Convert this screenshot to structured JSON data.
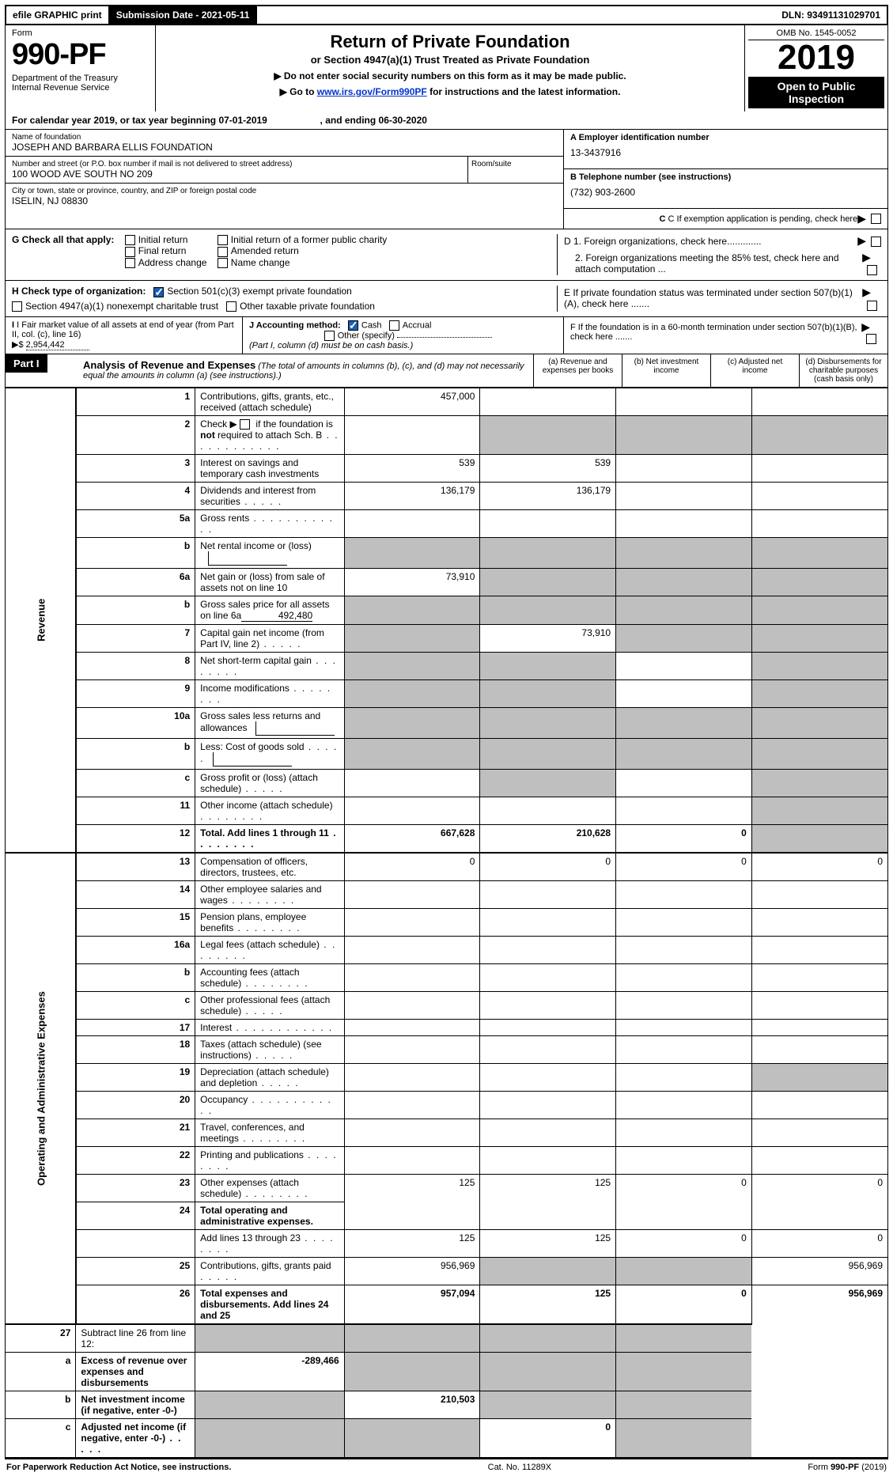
{
  "top_bar": {
    "efile_label": "efile GRAPHIC print",
    "submission_label": "Submission Date - 2021-05-11",
    "dln": "DLN: 93491131029701"
  },
  "header": {
    "form_label": "Form",
    "form_number": "990-PF",
    "dept": "Department of the Treasury\nInternal Revenue Service",
    "title": "Return of Private Foundation",
    "subtitle": "or Section 4947(a)(1) Trust Treated as Private Foundation",
    "note1": "▶ Do not enter social security numbers on this form as it may be made public.",
    "note2": "▶ Go to www.irs.gov/Form990PF for instructions and the latest information.",
    "note2_link_text": "www.irs.gov/Form990PF",
    "omb": "OMB No. 1545-0052",
    "tax_year": "2019",
    "open_public": "Open to Public Inspection"
  },
  "cal_year": {
    "prefix": "For calendar year 2019, or tax year beginning ",
    "begin_date": "07-01-2019",
    "mid": " , and ending ",
    "end_date": "06-30-2020"
  },
  "entity": {
    "name_label": "Name of foundation",
    "name": "JOSEPH AND BARBARA ELLIS FOUNDATION",
    "addr_label": "Number and street (or P.O. box number if mail is not delivered to street address)",
    "addr": "100 WOOD AVE SOUTH NO 209",
    "room_label": "Room/suite",
    "city_label": "City or town, state or province, country, and ZIP or foreign postal code",
    "city": "ISELIN, NJ  08830",
    "a_label": "A Employer identification number",
    "ein": "13-3437916",
    "b_label": "B Telephone number (see instructions)",
    "phone": "(732) 903-2600",
    "c_label": "C If exemption application is pending, check here",
    "d1_label": "D 1. Foreign organizations, check here.............",
    "d2_label": "2. Foreign organizations meeting the 85% test, check here and attach computation ...",
    "e_label": "E  If private foundation status was terminated under section 507(b)(1)(A), check here .......",
    "f_label": "F  If the foundation is in a 60-month termination under section 507(b)(1)(B), check here ......."
  },
  "g": {
    "label": "G Check all that apply:",
    "opts": [
      "Initial return",
      "Final return",
      "Address change",
      "Initial return of a former public charity",
      "Amended return",
      "Name change"
    ]
  },
  "h": {
    "label": "H Check type of organization:",
    "opt1": "Section 501(c)(3) exempt private foundation",
    "opt2": "Section 4947(a)(1) nonexempt charitable trust",
    "opt3": "Other taxable private foundation"
  },
  "i": {
    "label": "I Fair market value of all assets at end of year (from Part II, col. (c), line 16)",
    "prefix": "▶$",
    "value": "2,954,442"
  },
  "j": {
    "label": "J Accounting method:",
    "opt_cash": "Cash",
    "opt_accrual": "Accrual",
    "opt_other": "Other (specify)",
    "note": "(Part I, column (d) must be on cash basis.)"
  },
  "part1": {
    "label": "Part I",
    "title": "Analysis of Revenue and Expenses",
    "subtitle": "(The total of amounts in columns (b), (c), and (d) may not necessarily equal the amounts in column (a) (see instructions).)",
    "col_a": "(a)   Revenue and expenses per books",
    "col_b": "(b)   Net investment income",
    "col_c": "(c)   Adjusted net income",
    "col_d": "(d)   Disbursements for charitable purposes (cash basis only)"
  },
  "side_labels": {
    "revenue": "Revenue",
    "expenses": "Operating and Administrative Expenses"
  },
  "rows": [
    {
      "n": "1",
      "desc": "Contributions, gifts, grants, etc., received (attach schedule)",
      "a": "457,000",
      "b": "",
      "c": "",
      "d": ""
    },
    {
      "n": "2",
      "desc": "Check ▶ ☐ if the foundation is not required to attach Sch. B",
      "a": "",
      "b": "",
      "c": "",
      "d": "",
      "dots": true,
      "gray_bcd": true
    },
    {
      "n": "3",
      "desc": "Interest on savings and temporary cash investments",
      "a": "539",
      "b": "539",
      "c": "",
      "d": ""
    },
    {
      "n": "4",
      "desc": "Dividends and interest from securities",
      "a": "136,179",
      "b": "136,179",
      "c": "",
      "d": "",
      "dots": "short"
    },
    {
      "n": "5a",
      "desc": "Gross rents",
      "a": "",
      "b": "",
      "c": "",
      "d": "",
      "dots": true
    },
    {
      "n": "b",
      "desc": "Net rental income or (loss)",
      "a": "",
      "b": "",
      "c": "",
      "d": "",
      "mini": true,
      "gray_all": true
    },
    {
      "n": "6a",
      "desc": "Net gain or (loss) from sale of assets not on line 10",
      "a": "73,910",
      "b": "",
      "c": "",
      "d": "",
      "gray_bcd": true
    },
    {
      "n": "b",
      "desc": "Gross sales price for all assets on line 6a",
      "a": "",
      "b": "",
      "c": "",
      "d": "",
      "inline_val": "492,480",
      "gray_all": true
    },
    {
      "n": "7",
      "desc": "Capital gain net income (from Part IV, line 2)",
      "a": "",
      "b": "73,910",
      "c": "",
      "d": "",
      "dots": "short",
      "gray_a": true,
      "gray_cd": true
    },
    {
      "n": "8",
      "desc": "Net short-term capital gain",
      "a": "",
      "b": "",
      "c": "",
      "d": "",
      "dots": "med",
      "gray_ab": true,
      "gray_d": true
    },
    {
      "n": "9",
      "desc": "Income modifications",
      "a": "",
      "b": "",
      "c": "",
      "d": "",
      "dots": "med",
      "gray_ab": true,
      "gray_d": true
    },
    {
      "n": "10a",
      "desc": "Gross sales less returns and allowances",
      "a": "",
      "b": "",
      "c": "",
      "d": "",
      "mini": true,
      "gray_all": true
    },
    {
      "n": "b",
      "desc": "Less: Cost of goods sold",
      "a": "",
      "b": "",
      "c": "",
      "d": "",
      "dots": "short",
      "mini": true,
      "gray_all": true
    },
    {
      "n": "c",
      "desc": "Gross profit or (loss) (attach schedule)",
      "a": "",
      "b": "",
      "c": "",
      "d": "",
      "dots": "short",
      "gray_b": true,
      "gray_d": true
    },
    {
      "n": "11",
      "desc": "Other income (attach schedule)",
      "a": "",
      "b": "",
      "c": "",
      "d": "",
      "dots": "med",
      "gray_d": true
    },
    {
      "n": "12",
      "desc": "Total. Add lines 1 through 11",
      "a": "667,628",
      "b": "210,628",
      "c": "0",
      "d": "",
      "dots": "med",
      "bold": true,
      "gray_d": true
    }
  ],
  "exp_rows": [
    {
      "n": "13",
      "desc": "Compensation of officers, directors, trustees, etc.",
      "a": "0",
      "b": "0",
      "c": "0",
      "d": "0"
    },
    {
      "n": "14",
      "desc": "Other employee salaries and wages",
      "a": "",
      "b": "",
      "c": "",
      "d": "",
      "dots": "med"
    },
    {
      "n": "15",
      "desc": "Pension plans, employee benefits",
      "a": "",
      "b": "",
      "c": "",
      "d": "",
      "dots": "med"
    },
    {
      "n": "16a",
      "desc": "Legal fees (attach schedule)",
      "a": "",
      "b": "",
      "c": "",
      "d": "",
      "dots": "med"
    },
    {
      "n": "b",
      "desc": "Accounting fees (attach schedule)",
      "a": "",
      "b": "",
      "c": "",
      "d": "",
      "dots": "med"
    },
    {
      "n": "c",
      "desc": "Other professional fees (attach schedule)",
      "a": "",
      "b": "",
      "c": "",
      "d": "",
      "dots": "short"
    },
    {
      "n": "17",
      "desc": "Interest",
      "a": "",
      "b": "",
      "c": "",
      "d": "",
      "dots": true
    },
    {
      "n": "18",
      "desc": "Taxes (attach schedule) (see instructions)",
      "a": "",
      "b": "",
      "c": "",
      "d": "",
      "dots": "short"
    },
    {
      "n": "19",
      "desc": "Depreciation (attach schedule) and depletion",
      "a": "",
      "b": "",
      "c": "",
      "d": "",
      "dots": "short",
      "gray_d": true
    },
    {
      "n": "20",
      "desc": "Occupancy",
      "a": "",
      "b": "",
      "c": "",
      "d": "",
      "dots": true
    },
    {
      "n": "21",
      "desc": "Travel, conferences, and meetings",
      "a": "",
      "b": "",
      "c": "",
      "d": "",
      "dots": "med"
    },
    {
      "n": "22",
      "desc": "Printing and publications",
      "a": "",
      "b": "",
      "c": "",
      "d": "",
      "dots": "med"
    },
    {
      "n": "23",
      "desc": "Other expenses (attach schedule)",
      "a": "125",
      "b": "125",
      "c": "0",
      "d": "0",
      "dots": "med"
    },
    {
      "n": "24",
      "desc": "Total operating and administrative expenses.",
      "a": "",
      "b": "",
      "c": "",
      "d": "",
      "bold": true,
      "no_amt": true
    },
    {
      "n": "",
      "desc": "Add lines 13 through 23",
      "a": "125",
      "b": "125",
      "c": "0",
      "d": "0",
      "dots": "med"
    },
    {
      "n": "25",
      "desc": "Contributions, gifts, grants paid",
      "a": "956,969",
      "b": "",
      "c": "",
      "d": "956,969",
      "dots": "short",
      "gray_bc": true
    },
    {
      "n": "26",
      "desc": "Total expenses and disbursements. Add lines 24 and 25",
      "a": "957,094",
      "b": "125",
      "c": "0",
      "d": "956,969",
      "bold": true
    }
  ],
  "sub_rows": [
    {
      "n": "27",
      "desc": "Subtract line 26 from line 12:",
      "a": "",
      "b": "",
      "c": "",
      "d": "",
      "gray_all": true
    },
    {
      "n": "a",
      "desc": "Excess of revenue over expenses and disbursements",
      "a": "-289,466",
      "b": "",
      "c": "",
      "d": "",
      "bold": true,
      "gray_bcd": true
    },
    {
      "n": "b",
      "desc": "Net investment income (if negative, enter -0-)",
      "a": "",
      "b": "210,503",
      "c": "",
      "d": "",
      "bold": true,
      "gray_a": true,
      "gray_cd": true
    },
    {
      "n": "c",
      "desc": "Adjusted net income (if negative, enter -0-)",
      "a": "",
      "b": "",
      "c": "0",
      "d": "",
      "bold": true,
      "dots": "short",
      "gray_ab": true,
      "gray_d": true
    }
  ],
  "footer": {
    "left": "For Paperwork Reduction Act Notice, see instructions.",
    "center": "Cat. No. 11289X",
    "right": "Form 990-PF (2019)"
  },
  "colors": {
    "gray_cell": "#bfbfbf",
    "link": "#0033cc",
    "check": "#1a5fb4"
  }
}
